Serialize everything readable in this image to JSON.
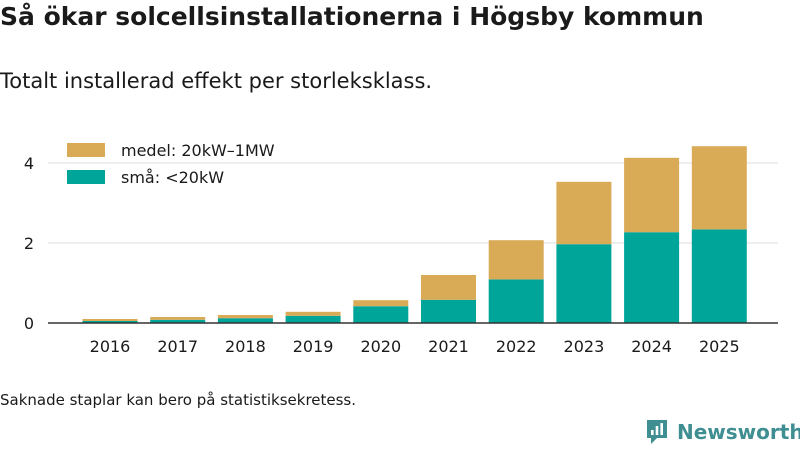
{
  "title": "Så ökar solcellsinstallationerna i Högsby kommun",
  "subtitle": "Totalt installerad effekt per storleksklass.",
  "note": "Saknade staplar kan bero på statistiksekretess.",
  "brand": "Newsworthy",
  "colors": {
    "medel": "#d9ab57",
    "sma": "#00a59a",
    "grid": "#dddddd",
    "axis": "#333333",
    "brand": "#3f8f92"
  },
  "chart_data": {
    "type": "bar",
    "stacked": true,
    "categories": [
      "2016",
      "2017",
      "2018",
      "2019",
      "2020",
      "2021",
      "2022",
      "2023",
      "2024",
      "2025"
    ],
    "series": [
      {
        "name": "små: <20kW",
        "values": [
          0.05,
          0.08,
          0.12,
          0.18,
          0.42,
          0.58,
          1.09,
          1.97,
          2.27,
          2.34
        ]
      },
      {
        "name": "medel: 20kW–1MW",
        "values": [
          0.05,
          0.07,
          0.08,
          0.1,
          0.15,
          0.62,
          0.98,
          1.56,
          1.86,
          2.08
        ]
      }
    ],
    "yticks": [
      0,
      2,
      4
    ],
    "ylim": [
      0,
      4.6
    ],
    "legend": "top-left",
    "grid": true,
    "xlabel": "",
    "ylabel": ""
  }
}
